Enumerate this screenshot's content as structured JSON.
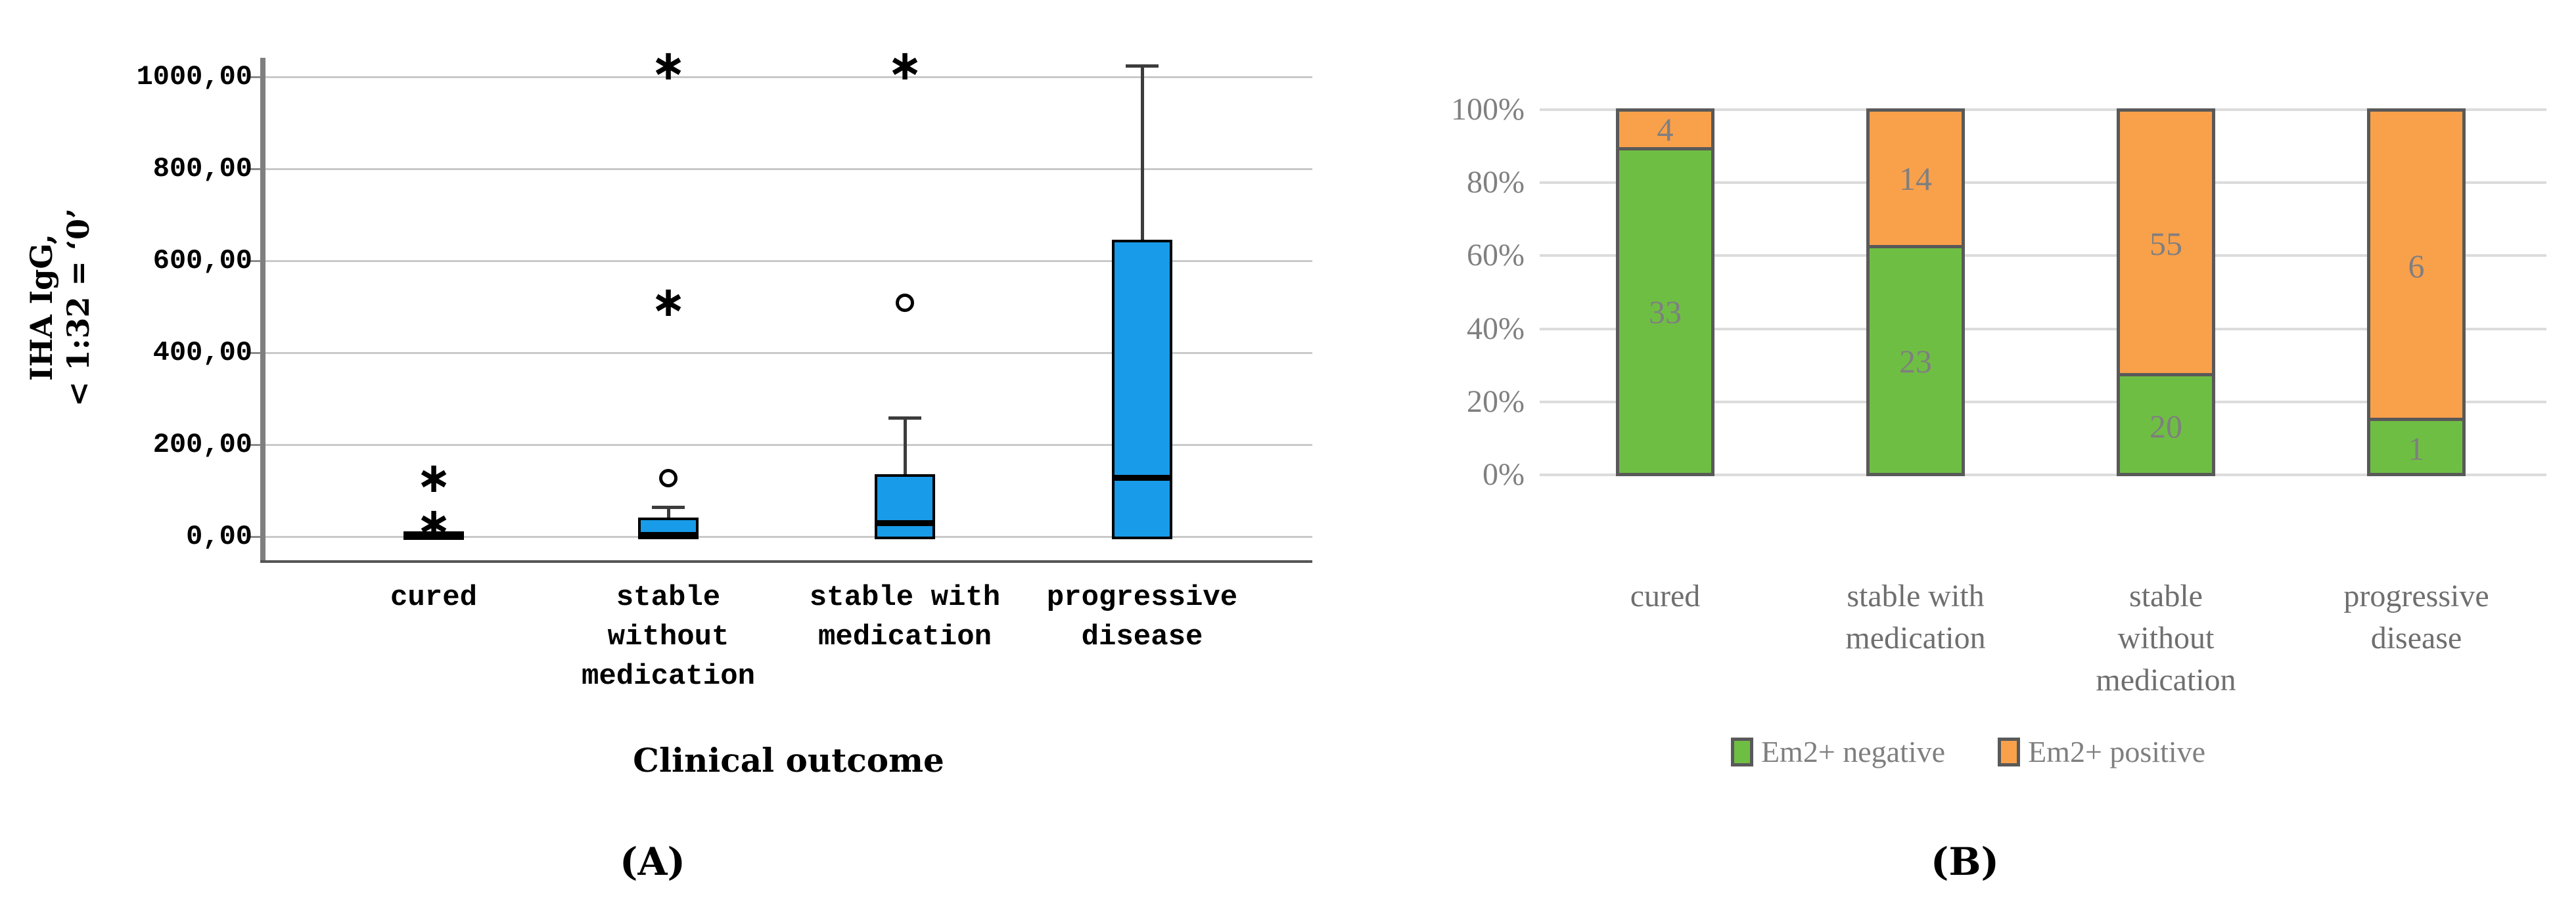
{
  "panel_a": {
    "label": "(A)"
  },
  "panel_b": {
    "label": "(B)"
  },
  "chart_data": [
    {
      "type": "boxplot",
      "panel": "A",
      "title": "",
      "xlabel": "Clinical outcome",
      "ylabel": [
        "IHA IgG,",
        "< 1:32 = ‘0’"
      ],
      "ylim": [
        -55,
        1075
      ],
      "grid": "horizontal",
      "box_fill_color": "#189be8",
      "yticks": [
        {
          "value": 0,
          "label": "0,00"
        },
        {
          "value": 200,
          "label": "200,00"
        },
        {
          "value": 400,
          "label": "400,00"
        },
        {
          "value": 600,
          "label": "600,00"
        },
        {
          "value": 800,
          "label": "800,00"
        },
        {
          "value": 1000,
          "label": "1000,00"
        }
      ],
      "categories": [
        {
          "label_lines": [
            "cured"
          ],
          "q1": 0,
          "median": 0,
          "q3": 6,
          "whisker_low": null,
          "whisker_high": null,
          "outliers": [
            {
              "symbol": "star",
              "value": 29
            },
            {
              "symbol": "star",
              "value": 127
            }
          ]
        },
        {
          "label_lines": [
            "stable",
            "without",
            "medication"
          ],
          "q1": 0,
          "median": 4,
          "q3": 36,
          "whisker_low": null,
          "whisker_high": 63,
          "outliers": [
            {
              "symbol": "circle",
              "value": 127
            },
            {
              "symbol": "star",
              "value": 510
            },
            {
              "symbol": "star",
              "value": 1025
            }
          ]
        },
        {
          "label_lines": [
            "stable with",
            "medication"
          ],
          "q1": 0,
          "median": 30,
          "q3": 130,
          "whisker_low": null,
          "whisker_high": 258,
          "outliers": [
            {
              "symbol": "circle",
              "value": 508
            },
            {
              "symbol": "star",
              "value": 1025
            }
          ]
        },
        {
          "label_lines": [
            "progressive",
            "disease"
          ],
          "q1": 0,
          "median": 128,
          "q3": 640,
          "whisker_low": null,
          "whisker_high": 1024,
          "outliers": []
        }
      ]
    },
    {
      "type": "stacked-bar-100",
      "panel": "B",
      "title": "",
      "grid": "horizontal",
      "bar_border_color": "#595959",
      "value_label_color": "#7f7f7f",
      "yticks": [
        {
          "value": 0,
          "label": "0%"
        },
        {
          "value": 20,
          "label": "20%"
        },
        {
          "value": 40,
          "label": "40%"
        },
        {
          "value": 60,
          "label": "60%"
        },
        {
          "value": 80,
          "label": "80%"
        },
        {
          "value": 100,
          "label": "100%"
        }
      ],
      "categories": [
        {
          "label_lines": [
            "cured"
          ]
        },
        {
          "label_lines": [
            "stable with",
            "medication"
          ]
        },
        {
          "label_lines": [
            "stable",
            "without",
            "medication"
          ]
        },
        {
          "label_lines": [
            "progressive",
            "disease"
          ]
        }
      ],
      "series": [
        {
          "name": "Em2+ negative",
          "color": "#6fbe44",
          "values": [
            33,
            23,
            20,
            1
          ]
        },
        {
          "name": "Em2+ positive",
          "color": "#f9a04b",
          "values": [
            4,
            14,
            55,
            6
          ]
        }
      ],
      "legend_position": "bottom"
    }
  ]
}
